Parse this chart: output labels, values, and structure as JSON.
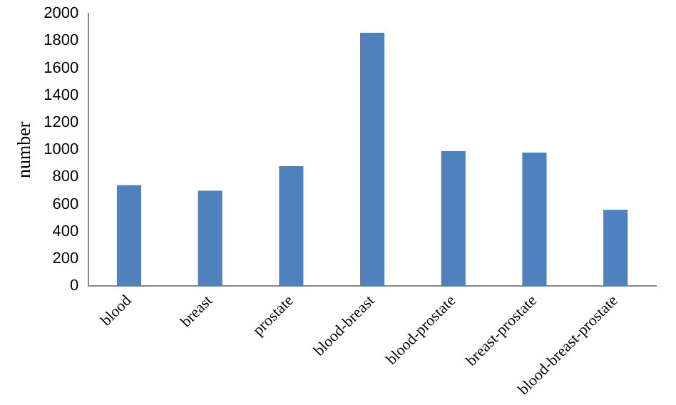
{
  "chart_data": {
    "type": "bar",
    "ylabel": "number",
    "categories": [
      "blood",
      "breast",
      "prostate",
      "blood-breast",
      "blood-prostate",
      "breast-prostate",
      "blood-breast-prostate"
    ],
    "values": [
      740,
      700,
      880,
      1860,
      990,
      980,
      560
    ],
    "color": "#4f81bd",
    "ylim": [
      0,
      2000
    ],
    "yticks": [
      0,
      200,
      400,
      600,
      800,
      1000,
      1200,
      1400,
      1600,
      1800,
      2000
    ],
    "grid": false,
    "legend": false
  }
}
